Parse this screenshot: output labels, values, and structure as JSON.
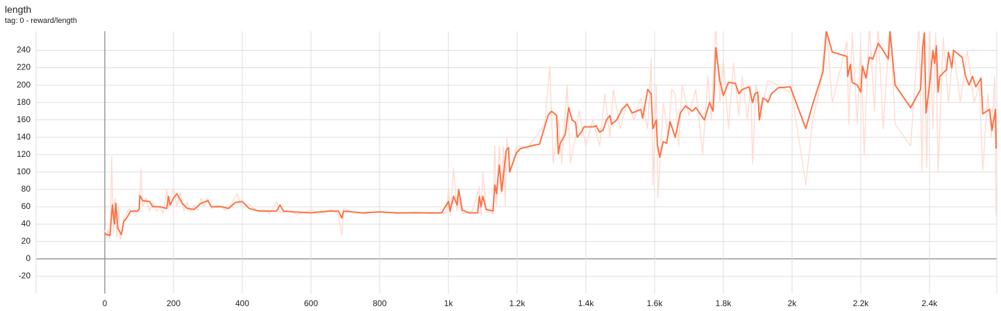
{
  "chart_data": {
    "type": "line",
    "title": "length",
    "subtitle": "tag: 0 - reward/length",
    "xlim": [
      -200,
      2596
    ],
    "xticks": [
      0,
      200,
      400,
      600,
      800,
      {
        "value": 1000,
        "label": "1k"
      },
      {
        "value": 1200,
        "label": "1.2k"
      },
      {
        "value": 1400,
        "label": "1.4k"
      },
      {
        "value": 1600,
        "label": "1.6k"
      },
      {
        "value": 1800,
        "label": "1.8k"
      },
      {
        "value": 2000,
        "label": "2k"
      },
      {
        "value": 2200,
        "label": "2.2k"
      },
      {
        "value": 2400,
        "label": "2.4k"
      }
    ],
    "ylim": [
      -40,
      262
    ],
    "yticks": [
      -20,
      0,
      20,
      40,
      60,
      80,
      100,
      120,
      140,
      160,
      180,
      200,
      220,
      240
    ],
    "grid": true,
    "series": [
      {
        "color": "#ffdcd2",
        "width": 1.5,
        "x": [
          0,
          5,
          10,
          15,
          20,
          25,
          30,
          35,
          40,
          45,
          50,
          55,
          60,
          70,
          80,
          90,
          100,
          105,
          110,
          120,
          130,
          140,
          150,
          160,
          170,
          180,
          185,
          190,
          200,
          210,
          220,
          230,
          240,
          250,
          260,
          270,
          280,
          290,
          300,
          310,
          330,
          350,
          370,
          385,
          400,
          420,
          440,
          460,
          480,
          500,
          510,
          540,
          560,
          600,
          640,
          660,
          680,
          690,
          695,
          720,
          760,
          800,
          850,
          900,
          950,
          995,
          1000,
          1005,
          1015,
          1025,
          1030,
          1040,
          1070,
          1090,
          1095,
          1100,
          1110,
          1130,
          1135,
          1140,
          1148,
          1155,
          1160,
          1165,
          1170,
          1180,
          1200,
          1230,
          1250,
          1280,
          1295,
          1305,
          1320,
          1330,
          1345,
          1355,
          1370,
          1380,
          1400,
          1420,
          1440,
          1455,
          1470,
          1480,
          1500,
          1520,
          1540,
          1560,
          1580,
          1590,
          1595,
          1605,
          1610,
          1625,
          1640,
          1650,
          1660,
          1670,
          1680,
          1700,
          1720,
          1740,
          1755,
          1765,
          1778,
          1790,
          1800,
          1815,
          1830,
          1845,
          1855,
          1870,
          1880,
          1885,
          1895,
          1910,
          1930,
          1960,
          2000,
          2040,
          2060,
          2083,
          2100,
          2117,
          2160,
          2165,
          2175,
          2190,
          2200,
          2210,
          2225,
          2240,
          2250,
          2265,
          2285,
          2300,
          2345,
          2370,
          2378,
          2385,
          2392,
          2400,
          2410,
          2418,
          2425,
          2440,
          2455,
          2470,
          2490,
          2510,
          2530,
          2545,
          2555,
          2570,
          2580,
          2590,
          2594
        ],
        "values": [
          33,
          25,
          35,
          20,
          118,
          30,
          70,
          25,
          60,
          22,
          30,
          45,
          50,
          57,
          55,
          50,
          60,
          103,
          60,
          70,
          55,
          65,
          55,
          60,
          52,
          80,
          58,
          70,
          82,
          60,
          77,
          55,
          65,
          54,
          62,
          56,
          70,
          60,
          70,
          58,
          62,
          56,
          64,
          75,
          58,
          63,
          55,
          57,
          52,
          66,
          53,
          55,
          51,
          56,
          52,
          57,
          51,
          27,
          58,
          54,
          52,
          55,
          52,
          54,
          52,
          53,
          83,
          50,
          104,
          55,
          70,
          52,
          55,
          83,
          50,
          100,
          55,
          52,
          130,
          60,
          130,
          75,
          130,
          60,
          140,
          100,
          130,
          128,
          138,
          155,
          222,
          110,
          160,
          110,
          200,
          110,
          140,
          170,
          130,
          160,
          130,
          190,
          140,
          195,
          150,
          180,
          160,
          185,
          150,
          230,
          85,
          200,
          70,
          180,
          140,
          195,
          190,
          130,
          200,
          165,
          195,
          120,
          210,
          160,
          270,
          180,
          230,
          150,
          225,
          165,
          210,
          160,
          200,
          110,
          200,
          170,
          205,
          200,
          190,
          85,
          160,
          200,
          270,
          180,
          250,
          155,
          260,
          155,
          250,
          120,
          270,
          170,
          270,
          150,
          270,
          155,
          130,
          270,
          100,
          270,
          105,
          270,
          150,
          260,
          100,
          255,
          180,
          240,
          180,
          240,
          180,
          200,
          102,
          190,
          140,
          210,
          50
        ]
      },
      {
        "color": "#ff7043",
        "width": 2,
        "x": [
          0,
          5,
          15,
          22,
          28,
          32,
          38,
          48,
          55,
          65,
          75,
          95,
          100,
          102,
          110,
          130,
          140,
          160,
          180,
          185,
          190,
          200,
          210,
          225,
          240,
          260,
          280,
          300,
          310,
          340,
          360,
          380,
          400,
          420,
          450,
          500,
          510,
          520,
          550,
          600,
          650,
          680,
          690,
          695,
          750,
          800,
          850,
          900,
          980,
          1000,
          1005,
          1015,
          1025,
          1030,
          1040,
          1060,
          1085,
          1090,
          1095,
          1100,
          1110,
          1130,
          1135,
          1140,
          1148,
          1155,
          1160,
          1168,
          1175,
          1178,
          1190,
          1198,
          1210,
          1230,
          1250,
          1265,
          1290,
          1300,
          1315,
          1320,
          1325,
          1340,
          1350,
          1360,
          1370,
          1375,
          1385,
          1395,
          1420,
          1430,
          1440,
          1450,
          1460,
          1470,
          1475,
          1490,
          1505,
          1520,
          1535,
          1560,
          1565,
          1580,
          1590,
          1595,
          1605,
          1608,
          1615,
          1625,
          1635,
          1645,
          1660,
          1675,
          1690,
          1710,
          1720,
          1745,
          1760,
          1770,
          1773,
          1778,
          1790,
          1800,
          1815,
          1835,
          1845,
          1855,
          1875,
          1885,
          1892,
          1900,
          1905,
          1915,
          1925,
          1930,
          1940,
          1960,
          1995,
          2040,
          2060,
          2090,
          2100,
          2117,
          2160,
          2162,
          2170,
          2175,
          2190,
          2200,
          2205,
          2215,
          2225,
          2235,
          2251,
          2265,
          2280,
          2285,
          2300,
          2345,
          2374,
          2380,
          2385,
          2390,
          2400,
          2410,
          2415,
          2420,
          2425,
          2430,
          2450,
          2455,
          2465,
          2470,
          2495,
          2505,
          2515,
          2525,
          2535,
          2550,
          2555,
          2575,
          2582,
          2592,
          2594
        ],
        "values": [
          30,
          28,
          27,
          62,
          40,
          64,
          35,
          28,
          43,
          48,
          55,
          55,
          57,
          73,
          67,
          66,
          60,
          60,
          58,
          72,
          62,
          70,
          75,
          64,
          58,
          57,
          64,
          67,
          60,
          60,
          58,
          65,
          66,
          58,
          55,
          55,
          62,
          55,
          54,
          53,
          55,
          55,
          47,
          55,
          53,
          54,
          53,
          53,
          53,
          66,
          55,
          72,
          62,
          80,
          56,
          53,
          53,
          72,
          60,
          72,
          57,
          55,
          85,
          75,
          108,
          78,
          95,
          125,
          128,
          100,
          113,
          122,
          127,
          129,
          131,
          132,
          165,
          170,
          165,
          121,
          133,
          143,
          174,
          160,
          157,
          140,
          145,
          152,
          152,
          153,
          146,
          148,
          160,
          165,
          155,
          160,
          172,
          178,
          168,
          172,
          162,
          195,
          190,
          150,
          160,
          132,
          117,
          135,
          133,
          158,
          140,
          168,
          176,
          170,
          174,
          160,
          180,
          170,
          190,
          243,
          205,
          188,
          203,
          202,
          190,
          195,
          198,
          180,
          190,
          192,
          160,
          185,
          183,
          180,
          190,
          197,
          198,
          150,
          178,
          215,
          262,
          238,
          233,
          210,
          224,
          203,
          200,
          192,
          222,
          208,
          232,
          230,
          248,
          240,
          230,
          262,
          200,
          174,
          195,
          243,
          260,
          168,
          200,
          240,
          225,
          245,
          192,
          210,
          218,
          238,
          220,
          240,
          232,
          210,
          200,
          210,
          198,
          208,
          167,
          172,
          148,
          172,
          127
        ]
      }
    ]
  }
}
